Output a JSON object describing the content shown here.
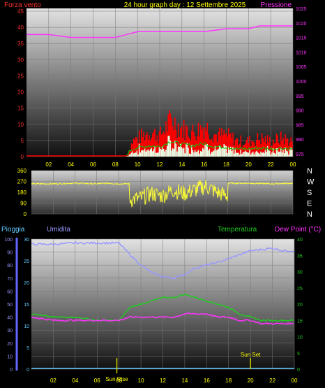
{
  "header": {
    "left_title": "Forza vento",
    "center_title": "24 hour graph day : 12 Settembre 2025",
    "right_title": "Pressione"
  },
  "colors": {
    "wind_label": "#ff3030",
    "center_title": "#ffff00",
    "pressure": "#ff33ff",
    "wind_gust": "#ff0000",
    "wind_avg": "#00cc00",
    "wind_fill": "#e6ffe6",
    "direction": "#ffff33",
    "humidity": "#9999ff",
    "temperature": "#22cc22",
    "dew_point": "#ff33ff",
    "rain": "#66ccff",
    "ticks": "#ffff00",
    "sun_marker": "#cccc00"
  },
  "top_panel": {
    "x_ticks": [
      "02",
      "04",
      "06",
      "08",
      "10",
      "12",
      "14",
      "16",
      "18",
      "20",
      "22",
      "00"
    ],
    "left_ticks": [
      "0",
      "5",
      "10",
      "15",
      "20",
      "25",
      "30",
      "35",
      "40",
      "45"
    ],
    "right_ticks": [
      "975",
      "980",
      "985",
      "990",
      "995",
      "1000",
      "1005",
      "1010",
      "1015",
      "1020",
      "1025"
    ]
  },
  "mid_panel": {
    "left_ticks": [
      "0",
      "90",
      "180",
      "270",
      "360"
    ],
    "compass": [
      "N",
      "W",
      "S",
      "E",
      "N"
    ]
  },
  "bottom_panel": {
    "labels": {
      "rain": "Pioggia",
      "humidity": "Umidita",
      "temperature": "Temperatura",
      "dew_point": "Dew Point (°C)"
    },
    "humidity_ticks": [
      "0",
      "10",
      "20",
      "30",
      "40",
      "50",
      "60",
      "70",
      "80",
      "90",
      "100"
    ],
    "rain_ticks": [
      "0",
      "5",
      "10",
      "15",
      "20",
      "25",
      "30"
    ],
    "temp_ticks": [
      "0",
      "5",
      "10",
      "15",
      "20",
      "25",
      "30",
      "35",
      "40"
    ],
    "x_ticks": [
      "02",
      "04",
      "06",
      "08",
      "10",
      "12",
      "14",
      "16",
      "18",
      "20",
      "22",
      "00"
    ],
    "sunrise_label": "Sun Rise",
    "sunset_label": "Sun Set"
  },
  "chart_data": [
    {
      "type": "line",
      "title": "24 hour graph day : 12 Settembre 2025",
      "x_unit": "hour",
      "series": [
        {
          "name": "Pressione",
          "axis": "right",
          "x": [
            0,
            2,
            4,
            6,
            8,
            9,
            10,
            12,
            14,
            16,
            18,
            20,
            21,
            22,
            23,
            24
          ],
          "values": [
            1016,
            1016,
            1015,
            1015,
            1015,
            1016,
            1017,
            1017,
            1017,
            1017,
            1018,
            1018,
            1019,
            1019,
            1019,
            1019
          ]
        },
        {
          "name": "Forza vento",
          "axis": "left",
          "x": [
            0,
            2,
            4,
            6,
            8,
            9,
            9.5,
            10,
            11,
            12,
            13,
            14,
            15,
            16,
            17,
            18,
            19,
            20,
            21,
            22,
            23,
            24
          ],
          "values": [
            0,
            0,
            0,
            0,
            0,
            0,
            5,
            6,
            8,
            7,
            12,
            9,
            8,
            10,
            7,
            7,
            5,
            5,
            6,
            5,
            6,
            5
          ]
        }
      ],
      "left_ylim": [
        0,
        45
      ],
      "right_ylim": [
        975,
        1025
      ]
    },
    {
      "type": "scatter",
      "title": "",
      "series": [
        {
          "name": "",
          "x": [
            0,
            2,
            4,
            6,
            7,
            8,
            9,
            9.01,
            10,
            11,
            12,
            13,
            14,
            15,
            16,
            17,
            18,
            18.01,
            20,
            22,
            24
          ],
          "values": [
            250,
            250,
            255,
            250,
            255,
            250,
            250,
            120,
            130,
            170,
            150,
            200,
            170,
            200,
            230,
            180,
            150,
            255,
            255,
            250,
            255
          ]
        }
      ],
      "ylim": [
        0,
        360
      ]
    },
    {
      "type": "line",
      "title": "",
      "series": [
        {
          "name": "Umidita",
          "axis": "humidity",
          "x": [
            0,
            2,
            4,
            6,
            8,
            9,
            10,
            11,
            12,
            13,
            14,
            15,
            16,
            17,
            18,
            19,
            20,
            21,
            22,
            23,
            24
          ],
          "values": [
            96,
            96,
            97,
            97,
            97,
            88,
            80,
            74,
            71,
            70,
            73,
            78,
            80,
            82,
            85,
            88,
            91,
            92,
            93,
            91,
            91
          ]
        },
        {
          "name": "Temperatura",
          "axis": "temp",
          "x": [
            0,
            2,
            4,
            6,
            8,
            9,
            10,
            11,
            12,
            13,
            14,
            15,
            16,
            17,
            18,
            19,
            20,
            21,
            22,
            23,
            24
          ],
          "values": [
            17,
            16,
            16,
            15,
            15,
            19,
            20,
            21,
            22,
            22,
            23,
            22,
            21,
            20,
            19,
            17,
            16,
            15,
            15,
            15,
            15
          ]
        },
        {
          "name": "Dew Point (°C)",
          "axis": "temp",
          "x": [
            0,
            2,
            4,
            6,
            8,
            9,
            10,
            11,
            12,
            13,
            14,
            15,
            16,
            17,
            18,
            19,
            20,
            21,
            22,
            23,
            24
          ],
          "values": [
            16,
            15,
            15,
            15,
            15,
            16,
            16,
            16,
            16,
            16,
            17,
            17,
            17,
            16,
            16,
            15,
            15,
            14,
            14,
            14,
            14
          ]
        },
        {
          "name": "Pioggia",
          "axis": "rain",
          "x": [
            0,
            24
          ],
          "values": [
            0,
            0
          ]
        }
      ],
      "humidity_ylim": [
        0,
        100
      ],
      "rain_ylim": [
        0,
        30
      ],
      "temp_ylim": [
        0,
        40
      ],
      "sunrise_hour": 7.8,
      "sunset_hour": 20
    }
  ]
}
